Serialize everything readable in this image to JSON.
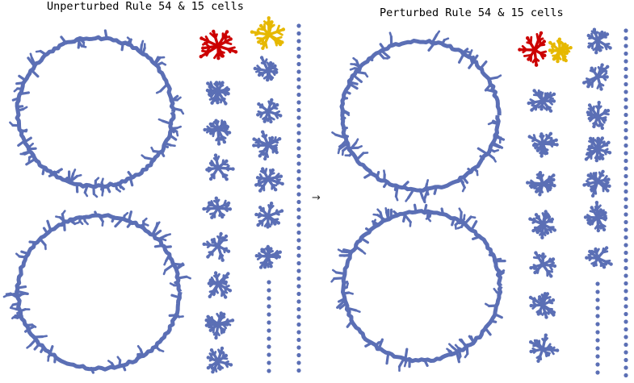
{
  "panels": [
    {
      "title": "Unperturbed Rule 54 & 15 cells"
    },
    {
      "title": "Perturbed Rule 54 & 15 cells"
    }
  ],
  "arrow": "→",
  "colors": {
    "component": "#5b6fb5",
    "largest_component": "#cc0000",
    "second_component": "#e6b800",
    "background": "#ffffff"
  }
}
